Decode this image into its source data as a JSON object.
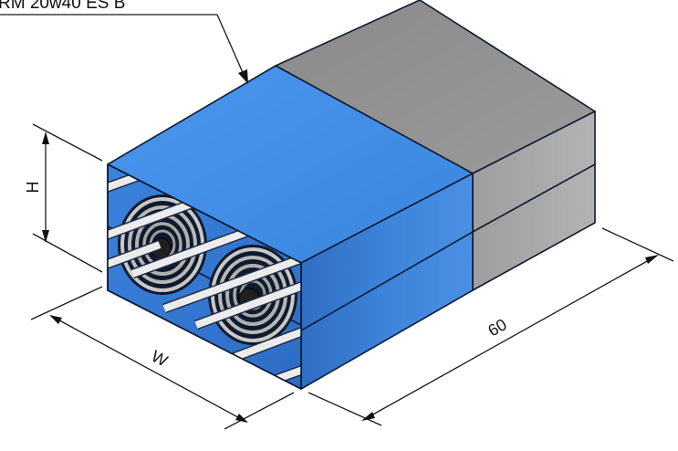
{
  "callout": {
    "label": "RM 20w40 ES B"
  },
  "dimensions": {
    "height": "H",
    "width": "W",
    "length": "60"
  },
  "colors": {
    "top_blue": "#3f8ce6",
    "side_blue": "#3a7fd2",
    "front_blue": "#2f6fc9",
    "grey_top": "#8f8f8f",
    "grey_side": "#a4a4a4",
    "bar": "#e9e9e9"
  }
}
